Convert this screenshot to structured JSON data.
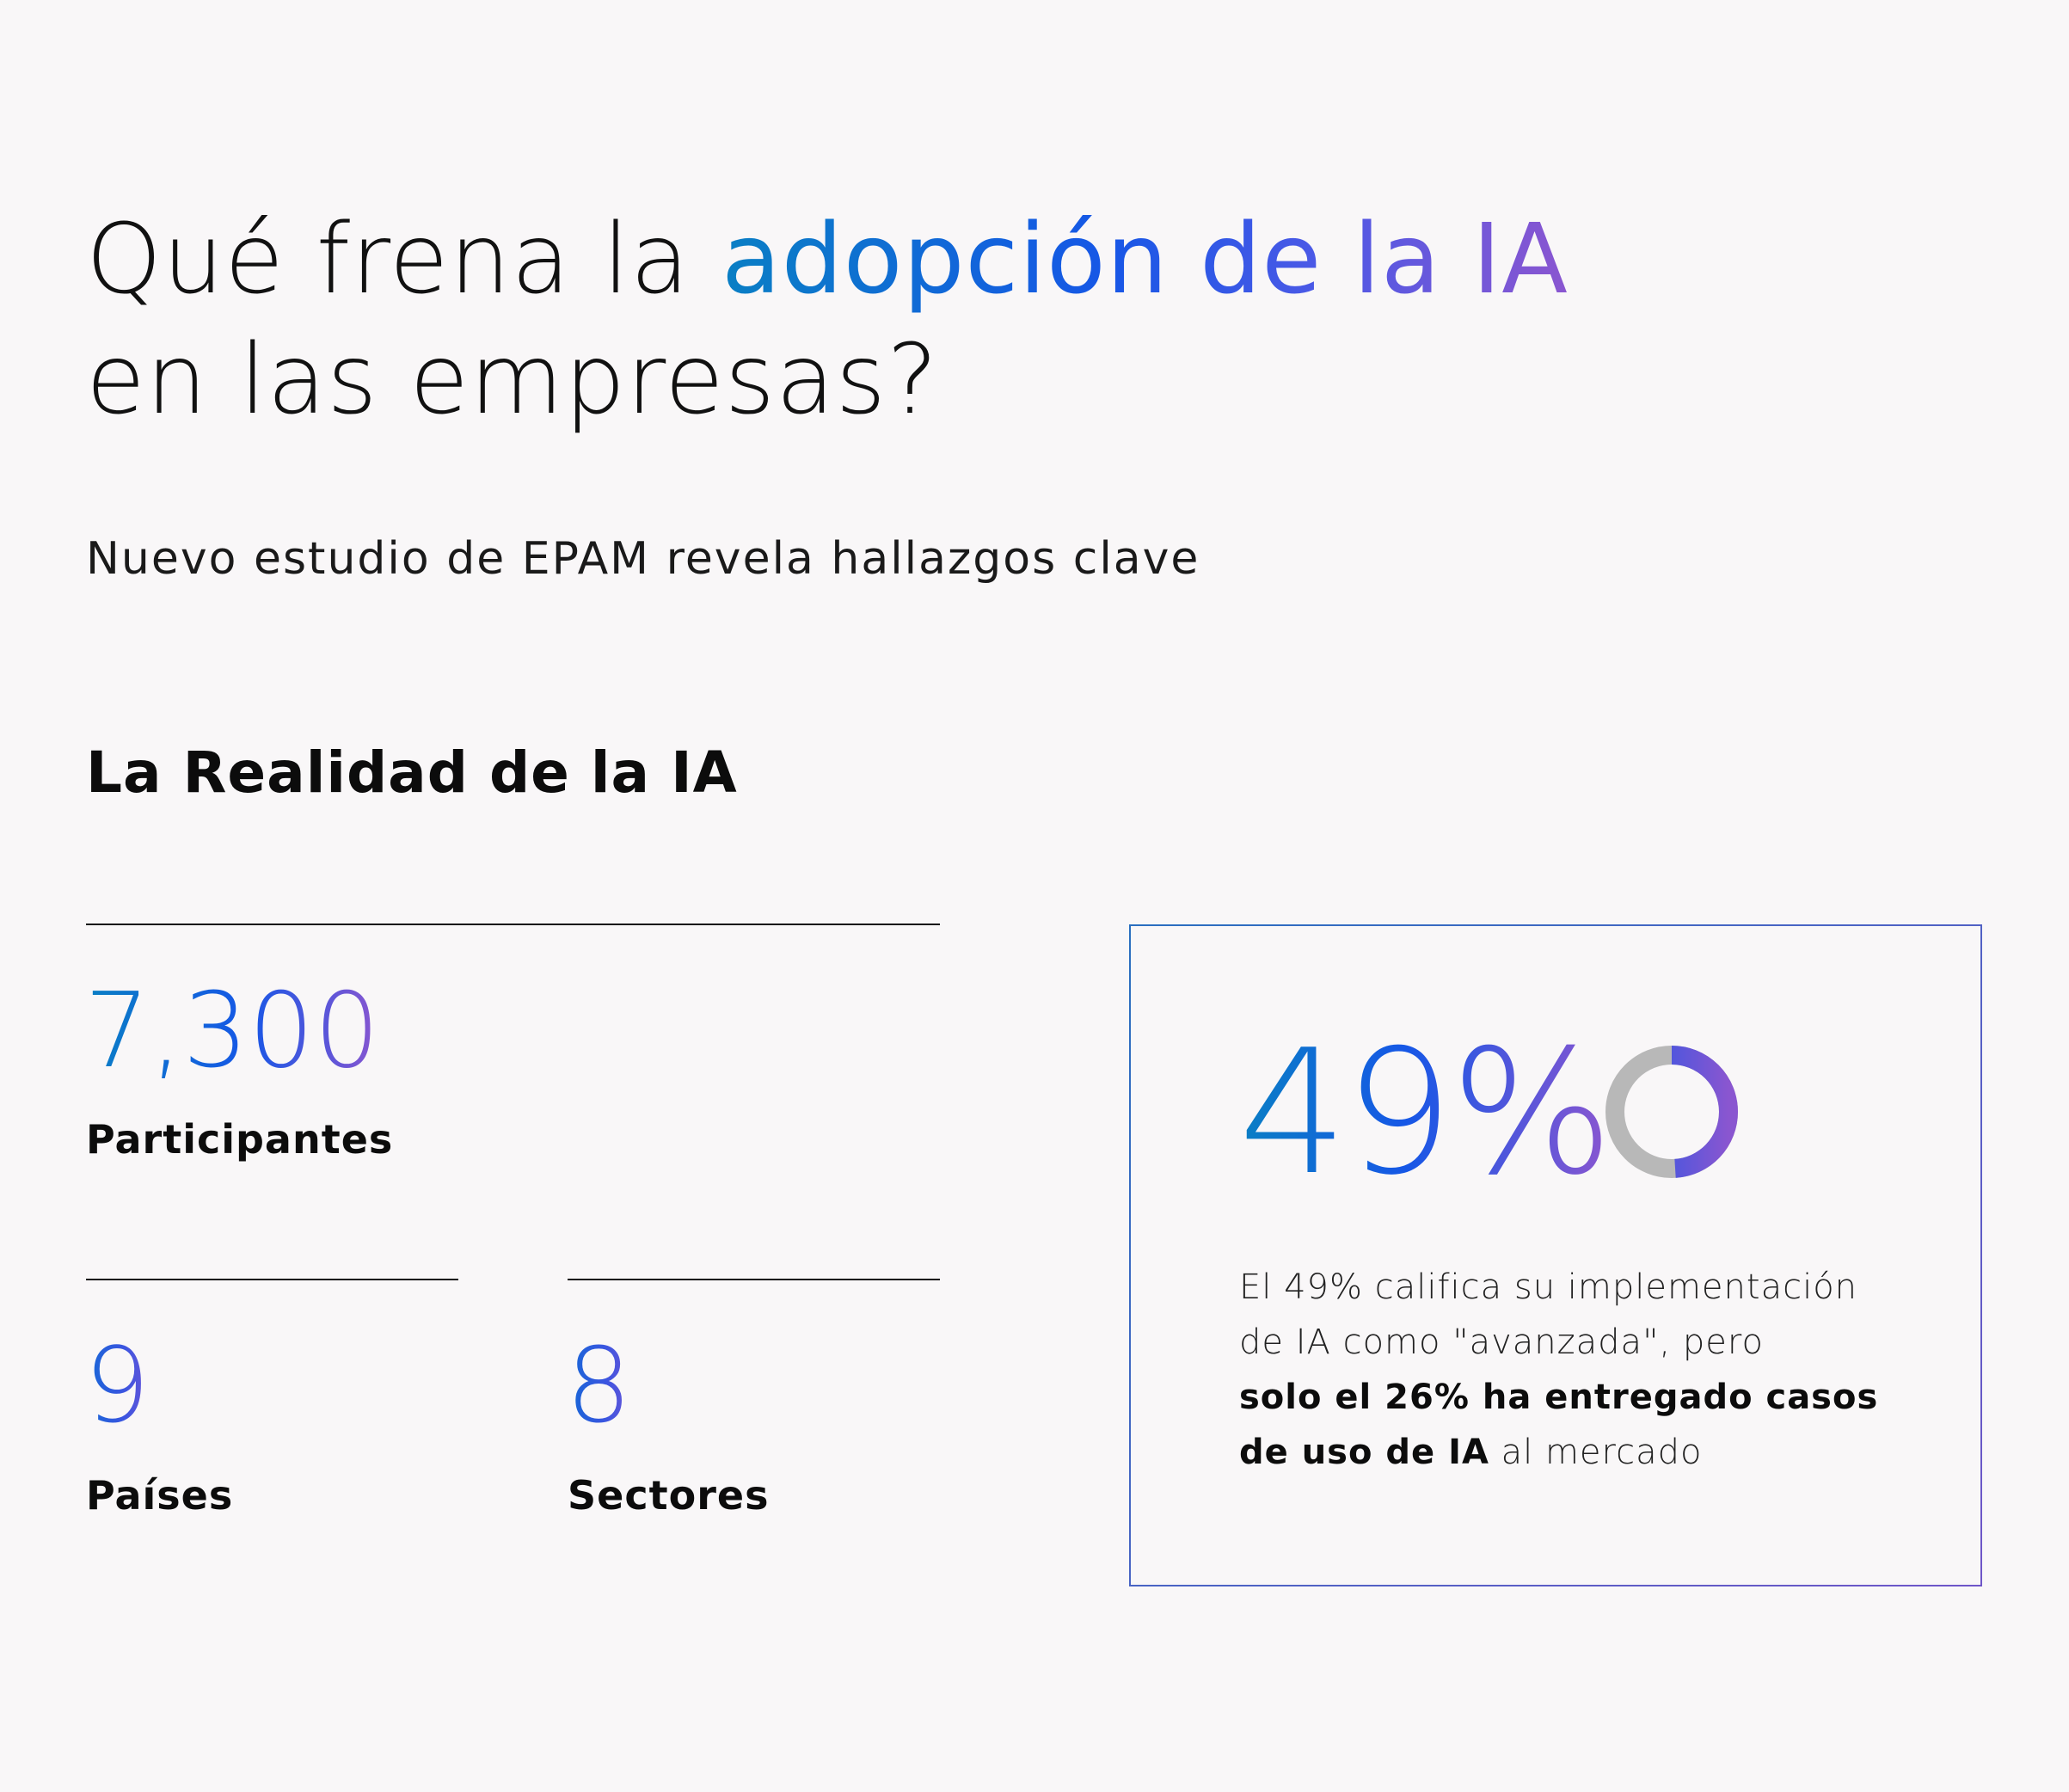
{
  "header": {
    "title_part1": "Qué frena la ",
    "title_highlight": "adopción de la IA",
    "title_part2": "en las empresas?",
    "subtitle": "Nuevo estudio de EPAM revela hallazgos clave"
  },
  "section": {
    "heading": "La Realidad de la IA"
  },
  "stats": {
    "participants": {
      "value": "7,300",
      "label": "Participantes"
    },
    "countries": {
      "value": "9",
      "label": "Países"
    },
    "sectors": {
      "value": "8",
      "label": "Sectores"
    }
  },
  "highlight_card": {
    "percent": "49%",
    "donut_fraction": 0.49,
    "text_line1": "El 49% califica su implementación",
    "text_line2": "de IA como \"avanzada\", pero",
    "text_bold": "solo el 26% ha entregado casos de uso de IA",
    "text_end": " al mercado"
  },
  "colors": {
    "gradient_start": "#0a7fc4",
    "gradient_mid": "#1657e6",
    "gradient_end": "#8a56d0",
    "donut_track": "#b8b8b8",
    "background": "#f9f7f8"
  }
}
